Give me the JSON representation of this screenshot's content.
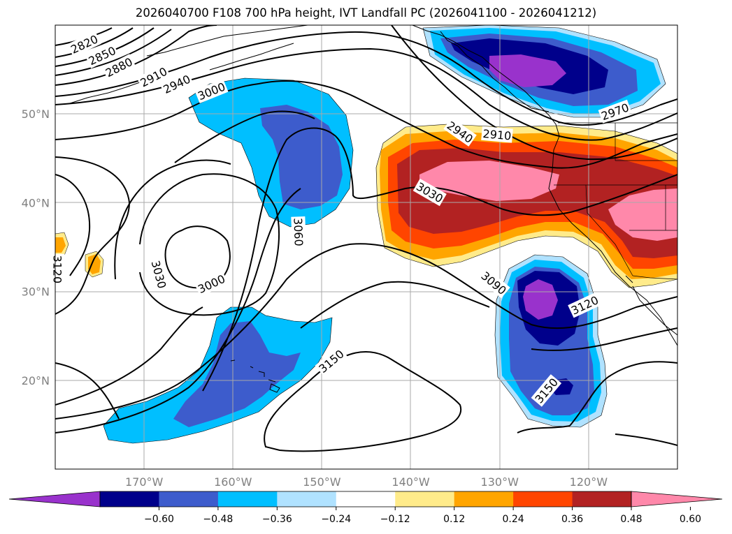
{
  "title": "2026040700 F108 700 hPa height, IVT Landfall PC (2026041100 - 2026041212)",
  "map": {
    "projection": "PlateCarree",
    "lon_range": [
      -180,
      -110
    ],
    "lat_range": [
      10,
      60
    ],
    "grid": true,
    "lat_ticks": [
      {
        "value": 20,
        "label": "20°N"
      },
      {
        "value": 30,
        "label": "30°N"
      },
      {
        "value": 40,
        "label": "40°N"
      },
      {
        "value": 50,
        "label": "50°N"
      }
    ],
    "lon_ticks": [
      {
        "value": -170,
        "label": "170°W"
      },
      {
        "value": -160,
        "label": "160°W"
      },
      {
        "value": -150,
        "label": "150°W"
      },
      {
        "value": -140,
        "label": "140°W"
      },
      {
        "value": -130,
        "label": "130°W"
      },
      {
        "value": -120,
        "label": "120°W"
      }
    ],
    "contour_labels": [
      {
        "text": "2820",
        "lon": -176.7,
        "lat": 57.8,
        "rot": -25
      },
      {
        "text": "2850",
        "lon": -174.7,
        "lat": 56.5,
        "rot": -25
      },
      {
        "text": "2880",
        "lon": -172.8,
        "lat": 55.2,
        "rot": -27
      },
      {
        "text": "2910",
        "lon": -168.9,
        "lat": 54.1,
        "rot": -28
      },
      {
        "text": "2940",
        "lon": -166.3,
        "lat": 53.3,
        "rot": -25
      },
      {
        "text": "3000",
        "lon": -162.4,
        "lat": 52.5,
        "rot": -22
      },
      {
        "text": "2940",
        "lon": -134.5,
        "lat": 47.9,
        "rot": 35
      },
      {
        "text": "2910",
        "lon": -130.3,
        "lat": 47.6,
        "rot": 5
      },
      {
        "text": "2970",
        "lon": -117.0,
        "lat": 50.2,
        "rot": -20
      },
      {
        "text": "3030",
        "lon": -137.9,
        "lat": 41.1,
        "rot": 30
      },
      {
        "text": "3060",
        "lon": -152.7,
        "lat": 36.7,
        "rot": 88
      },
      {
        "text": "3030",
        "lon": -168.4,
        "lat": 31.9,
        "rot": 75
      },
      {
        "text": "3000",
        "lon": -162.4,
        "lat": 30.8,
        "rot": -25
      },
      {
        "text": "3090",
        "lon": -130.7,
        "lat": 30.9,
        "rot": 40
      },
      {
        "text": "3120",
        "lon": -120.4,
        "lat": 28.4,
        "rot": -25
      },
      {
        "text": "3150",
        "lon": -148.9,
        "lat": 22.1,
        "rot": -40
      },
      {
        "text": "3150",
        "lon": -124.7,
        "lat": 18.8,
        "rot": -50
      },
      {
        "text": "3120",
        "lon": -179.8,
        "lat": 32.5,
        "rot": 90
      }
    ]
  },
  "colorbar": {
    "ticks": [
      "−0.60",
      "−0.48",
      "−0.36",
      "−0.24",
      "−0.12",
      "0.12",
      "0.24",
      "0.36",
      "0.48",
      "0.60"
    ],
    "colors": [
      "#9932cc",
      "#00008b",
      "#3d5ccc",
      "#00bfff",
      "#b0e2ff",
      "#ffffff",
      "#ffeb8a",
      "#ffa500",
      "#ff4500",
      "#b22222",
      "#ff88aa"
    ]
  }
}
